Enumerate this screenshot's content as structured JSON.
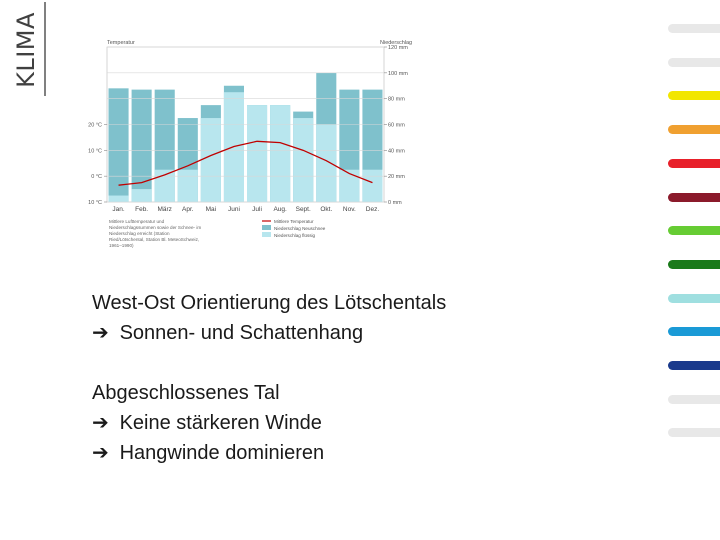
{
  "slide": {
    "title": "KLIMA",
    "paragraph1": {
      "line1": "West-Ost Orientierung des Lötschentals",
      "line2": "Sonnen- und Schattenhang"
    },
    "paragraph2": {
      "line1": "Abgeschlossenes Tal",
      "line2": "Keine stärkeren Winde",
      "line3": "Hangwinde dominieren"
    },
    "arrow_icon": "right-arrow-icon",
    "nav_stripes": [
      "#e8e8e8",
      "#e8e8e8",
      "#f2e600",
      "#f0a030",
      "#e8202a",
      "#8b1a2b",
      "#66cc33",
      "#1a7a1a",
      "#9fdfe0",
      "#1a9ad6",
      "#1a3a8c",
      "#e8e8e8",
      "#e8e8e8"
    ]
  },
  "chart_data": {
    "type": "bar",
    "title": "",
    "left_axis_title": "Temperatur",
    "right_axis_title": "Niederschlag",
    "categories": [
      "Jan.",
      "Feb.",
      "März",
      "Apr.",
      "Mai",
      "Juni",
      "Juli",
      "Aug.",
      "Sept.",
      "Okt.",
      "Nov.",
      "Dez."
    ],
    "temperature_ticks": [
      "20 °C",
      "10 °C",
      "0 °C",
      "-10 °C"
    ],
    "precip_ticks": [
      "120 mm",
      "100 mm",
      "80 mm",
      "60 mm",
      "40 mm",
      "20 mm",
      "0 mm"
    ],
    "temperature_ylim": [
      -10,
      50
    ],
    "precip_ylim": [
      0,
      120
    ],
    "series": [
      {
        "name": "Mittlere Temperatur",
        "values": [
          -3.5,
          -2.5,
          0.5,
          4,
          8,
          11.5,
          13.5,
          13,
          10,
          6,
          1,
          -2.5
        ],
        "color": "#c00000"
      },
      {
        "name": "Niederschlag Neuschnee",
        "values": [
          88,
          87,
          87,
          65,
          75,
          90,
          75,
          75,
          70,
          100,
          87,
          87
        ],
        "color": "#7fc1cc"
      },
      {
        "name": "Niederschlag flüssig",
        "values": [
          5,
          10,
          25,
          25,
          65,
          85,
          75,
          75,
          65,
          60,
          25,
          25
        ],
        "color": "#b8e6ee"
      }
    ],
    "footnote": "Mittlere Lufttemperatur und Niederschlagssummen sowie der Schnee- im Niederschlag erreicht (Station Ried/Lötschental, Station Bl. MeteoSchweiz, 1961–1990)",
    "grid": true
  }
}
